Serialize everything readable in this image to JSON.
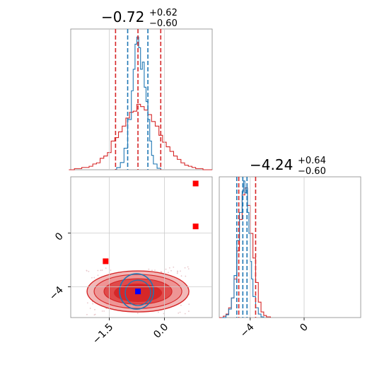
{
  "chart_data": {
    "type": "corner",
    "params": [
      {
        "title_main": "−0.72",
        "title_sup": "+0.62",
        "title_sub": "−0.60",
        "range": [
          -2.55,
          1.3
        ]
      },
      {
        "title_main": "−4.24",
        "title_sup": "+0.64",
        "title_sub": "−0.60",
        "range": [
          -6.3,
          4.2
        ]
      }
    ],
    "ticks": {
      "x0": [
        {
          "value": -1.5,
          "label": "−1.5"
        },
        {
          "value": 0.0,
          "label": "0.0"
        }
      ],
      "x1": [
        {
          "value": -4,
          "label": "−4"
        },
        {
          "value": 0,
          "label": "0"
        }
      ],
      "y1": [
        {
          "value": -4,
          "label": "−4"
        },
        {
          "value": 0,
          "label": "0"
        }
      ]
    },
    "colors": {
      "red": "#d62728",
      "blue": "#1f77b4",
      "marker_red": "#ff0000",
      "marker_blue": "#0000ff"
    },
    "series": [
      {
        "color": "#d62728",
        "hist0_quantiles": [
          -1.33,
          -0.72,
          -0.1
        ],
        "hist1_quantiles": [
          -4.84,
          -4.24,
          -3.6
        ]
      },
      {
        "color": "#1f77b4",
        "hist0_quantiles": [
          -1.0,
          -0.72,
          -0.45
        ],
        "hist1_quantiles": [
          -4.9,
          -4.24,
          -4.75
        ]
      }
    ],
    "hist0_x": [
      -2.6,
      -2.45,
      -2.35,
      -2.25,
      -2.15,
      -2.05,
      -1.95,
      -1.85,
      -1.75,
      -1.65,
      -1.55,
      -1.45,
      -1.35,
      -1.25,
      -1.15,
      -1.05,
      -0.95,
      -0.85,
      -0.75,
      -0.65,
      -0.55,
      -0.45,
      -0.35,
      -0.25,
      -0.15,
      -0.05,
      0.05,
      0.15,
      0.25,
      0.35,
      0.45,
      0.55,
      0.65,
      0.75,
      0.85,
      0.95,
      1.05,
      1.3
    ],
    "hist0_red": [
      0,
      1,
      1,
      2,
      2,
      3,
      5,
      6,
      10,
      12,
      15,
      25,
      28,
      33,
      38,
      45,
      50,
      51,
      57,
      55,
      52,
      48,
      42,
      38,
      30,
      24,
      20,
      16,
      12,
      9,
      6,
      4,
      3,
      2,
      1,
      1,
      0
    ],
    "hist0_blue_x": [
      -1.3,
      -1.2,
      -1.1,
      -1.0,
      -0.9,
      -0.85,
      -0.8,
      -0.75,
      -0.7,
      -0.65,
      -0.6,
      -0.55,
      -0.5,
      -0.45,
      -0.4,
      -0.35,
      -0.3,
      -0.2,
      -0.1
    ],
    "hist0_blue": [
      3,
      10,
      30,
      70,
      110,
      140,
      175,
      185,
      170,
      140,
      150,
      115,
      95,
      70,
      40,
      20,
      8,
      2
    ],
    "hist1_x": [
      -6.3,
      -6.0,
      -5.8,
      -5.6,
      -5.4,
      -5.2,
      -5.0,
      -4.8,
      -4.6,
      -4.4,
      -4.2,
      -4.0,
      -3.8,
      -3.6,
      -3.4,
      -3.2,
      -3.0,
      -2.8,
      -2.5
    ],
    "hist1_red": [
      0,
      2,
      5,
      14,
      28,
      55,
      95,
      140,
      175,
      185,
      160,
      120,
      85,
      50,
      22,
      8,
      3,
      1
    ],
    "hist1_blue_x": [
      -6.1,
      -5.8,
      -5.6,
      -5.4,
      -5.2,
      -5.0,
      -4.8,
      -4.6,
      -4.5,
      -4.4,
      -4.3,
      -4.2,
      -4.1,
      -4.0,
      -3.9,
      -3.8,
      -3.6,
      -3.4,
      -3.2,
      -3.0
    ],
    "hist1_blue": [
      0,
      4,
      12,
      28,
      60,
      110,
      150,
      180,
      195,
      178,
      185,
      150,
      120,
      80,
      55,
      30,
      14,
      5,
      1
    ],
    "scatter_markers": [
      {
        "x": 0.85,
        "y": 3.7,
        "color": "#ff0000"
      },
      {
        "x": 0.85,
        "y": 0.5,
        "color": "#ff0000"
      },
      {
        "x": -1.6,
        "y": -2.1,
        "color": "#ff0000"
      },
      {
        "x": -0.72,
        "y": -4.35,
        "color": "#0000ff"
      }
    ],
    "scatter_ylim": [
      -6.3,
      4.2
    ]
  }
}
